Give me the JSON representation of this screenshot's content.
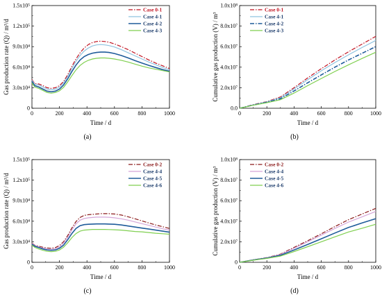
{
  "chart_data": [
    {
      "panel": "(a)",
      "type": "line",
      "xlabel": "Time / d",
      "ylabel": "Gas production rate (Q) / m³/d",
      "xlim": [
        0,
        1000
      ],
      "ylim": [
        0,
        150000
      ],
      "xticks": [
        "0",
        "200",
        "400",
        "600",
        "800",
        "1000"
      ],
      "yticks": [
        "0",
        "3.0x10⁴",
        "6.0x10⁴",
        "9.0x10⁴",
        "1.2x10⁵",
        "1.5x10⁵"
      ],
      "grid": false,
      "legend_position": "top-right",
      "series": [
        {
          "name": "Case 0-1",
          "color": "#c0111f",
          "dash": "dashdot",
          "x": [
            0,
            20,
            50,
            80,
            110,
            140,
            170,
            200,
            230,
            260,
            290,
            320,
            350,
            380,
            410,
            440,
            470,
            500,
            530,
            560,
            600,
            650,
            700,
            750,
            800,
            850,
            900,
            950,
            1000
          ],
          "y": [
            42000,
            36000,
            35500,
            33000,
            30000,
            29000,
            30000,
            33000,
            39000,
            49000,
            61000,
            72000,
            81000,
            88000,
            93000,
            96000,
            97500,
            98000,
            97500,
            96500,
            94000,
            90000,
            85500,
            80500,
            75500,
            70500,
            66000,
            62000,
            58000
          ]
        },
        {
          "name": "Case 4-1",
          "color": "#8fc3e0",
          "dash": "solid",
          "x": [
            0,
            20,
            50,
            80,
            110,
            140,
            170,
            200,
            230,
            260,
            290,
            320,
            350,
            380,
            410,
            440,
            470,
            500,
            530,
            560,
            600,
            650,
            700,
            750,
            800,
            850,
            900,
            950,
            1000
          ],
          "y": [
            41000,
            35000,
            34000,
            31000,
            28000,
            27000,
            28000,
            31000,
            37000,
            46500,
            58000,
            68500,
            77000,
            83500,
            88000,
            91000,
            92500,
            93000,
            92500,
            91500,
            89500,
            85500,
            81000,
            76500,
            72000,
            67500,
            63500,
            59500,
            56000
          ]
        },
        {
          "name": "Case 4-2",
          "color": "#1e5b9a",
          "dash": "solid",
          "x": [
            0,
            20,
            50,
            80,
            110,
            140,
            170,
            200,
            230,
            260,
            290,
            320,
            350,
            380,
            410,
            440,
            470,
            500,
            530,
            560,
            600,
            650,
            700,
            750,
            800,
            850,
            900,
            950,
            1000
          ],
          "y": [
            39000,
            33000,
            31000,
            28000,
            25000,
            24000,
            25000,
            28000,
            34000,
            43000,
            53500,
            63000,
            70500,
            75500,
            78500,
            80500,
            81500,
            82000,
            82000,
            81500,
            80000,
            77000,
            73500,
            69500,
            66000,
            62500,
            59500,
            56500,
            54000
          ]
        },
        {
          "name": "Case 4-3",
          "color": "#7fcf4f",
          "dash": "solid",
          "x": [
            0,
            20,
            50,
            80,
            110,
            140,
            170,
            200,
            230,
            260,
            290,
            320,
            350,
            380,
            410,
            440,
            470,
            500,
            530,
            560,
            600,
            650,
            700,
            750,
            800,
            850,
            900,
            950,
            1000
          ],
          "y": [
            37000,
            31000,
            29000,
            26000,
            23000,
            22000,
            23000,
            25500,
            30500,
            38500,
            47500,
            56000,
            62500,
            67000,
            70000,
            72000,
            73000,
            73500,
            73500,
            73000,
            72000,
            70000,
            67500,
            64500,
            61500,
            59000,
            57000,
            55000,
            53000
          ]
        }
      ]
    },
    {
      "panel": "(b)",
      "type": "line",
      "xlabel": "Time / d",
      "ylabel": "Cumulative gas production (V) / m³",
      "xlim": [
        0,
        1000
      ],
      "ylim": [
        0,
        100000000
      ],
      "xticks": [
        "0",
        "200",
        "400",
        "600",
        "800",
        "1000"
      ],
      "yticks": [
        "0.0",
        "2.0x10⁷",
        "4.0x10⁷",
        "6.0x10⁷",
        "8.0x10⁷",
        "1.0x10⁸"
      ],
      "grid": false,
      "legend_position": "top-left",
      "series": [
        {
          "name": "Case 0-1",
          "color": "#c0111f",
          "dash": "dashdot",
          "x": [
            0,
            100,
            200,
            300,
            400,
            500,
            600,
            700,
            800,
            900,
            1000
          ],
          "y": [
            0,
            3500000,
            6500000,
            11000000,
            20000000,
            29500000,
            38500000,
            47000000,
            55000000,
            62500000,
            70000000
          ]
        },
        {
          "name": "Case 4-1",
          "color": "#8fc3e0",
          "dash": "solid",
          "x": [
            0,
            100,
            200,
            300,
            400,
            500,
            600,
            700,
            800,
            900,
            1000
          ],
          "y": [
            0,
            3300000,
            6200000,
            10300000,
            18800000,
            27800000,
            36500000,
            44500000,
            52000000,
            59200000,
            66000000
          ]
        },
        {
          "name": "Case 4-2",
          "color": "#1e5b9a",
          "dash": "dashdot",
          "x": [
            0,
            100,
            200,
            300,
            400,
            500,
            600,
            700,
            800,
            900,
            1000
          ],
          "y": [
            0,
            3100000,
            5800000,
            9300000,
            16800000,
            24800000,
            32500000,
            40000000,
            47000000,
            53500000,
            60000000
          ]
        },
        {
          "name": "Case 4-3",
          "color": "#7fcf4f",
          "dash": "solid",
          "x": [
            0,
            100,
            200,
            300,
            400,
            500,
            600,
            700,
            800,
            900,
            1000
          ],
          "y": [
            0,
            2900000,
            5400000,
            8300000,
            14800000,
            22000000,
            29000000,
            35800000,
            42300000,
            48500000,
            54500000
          ]
        }
      ]
    },
    {
      "panel": "(c)",
      "type": "line",
      "xlabel": "Time / d",
      "ylabel": "Gas production rate (Q) / m³/d",
      "xlim": [
        0,
        1000
      ],
      "ylim": [
        0,
        150000
      ],
      "xticks": [
        "0",
        "200",
        "400",
        "600",
        "800",
        "1000"
      ],
      "yticks": [
        "0",
        "3.0x10⁴",
        "6.0x10⁴",
        "9.0x10⁴",
        "1.2x10⁵",
        "1.5x10⁵"
      ],
      "grid": false,
      "legend_position": "top-right",
      "series": [
        {
          "name": "Case 0-2",
          "color": "#8b1a1a",
          "dash": "dashdot",
          "x": [
            0,
            20,
            50,
            80,
            110,
            140,
            170,
            200,
            230,
            260,
            290,
            320,
            350,
            380,
            410,
            440,
            470,
            500,
            530,
            560,
            600,
            650,
            700,
            750,
            800,
            850,
            900,
            950,
            1000
          ],
          "y": [
            28000,
            25000,
            23500,
            22000,
            21000,
            20500,
            21500,
            24500,
            30000,
            39000,
            50000,
            59500,
            65500,
            68500,
            69500,
            70000,
            70500,
            71000,
            71000,
            71000,
            70500,
            69000,
            66500,
            63500,
            60500,
            57500,
            54500,
            52000,
            49500
          ]
        },
        {
          "name": "Case 4-4",
          "color": "#d4a5d8",
          "dash": "solid",
          "x": [
            0,
            20,
            50,
            80,
            110,
            140,
            170,
            200,
            230,
            260,
            290,
            320,
            350,
            380,
            410,
            440,
            470,
            500,
            530,
            560,
            600,
            650,
            700,
            750,
            800,
            850,
            900,
            950,
            1000
          ],
          "y": [
            27500,
            24500,
            22500,
            21000,
            19500,
            19000,
            20000,
            22500,
            28000,
            36500,
            47000,
            56000,
            61500,
            64000,
            65000,
            65500,
            66000,
            66000,
            66000,
            65800,
            65000,
            63500,
            61500,
            59000,
            56500,
            54000,
            51500,
            49000,
            47000
          ]
        },
        {
          "name": "Case 4-5",
          "color": "#1e5b9a",
          "dash": "solid",
          "x": [
            0,
            20,
            50,
            80,
            110,
            140,
            170,
            200,
            230,
            260,
            290,
            320,
            350,
            380,
            410,
            440,
            470,
            500,
            530,
            560,
            600,
            650,
            700,
            750,
            800,
            850,
            900,
            950,
            1000
          ],
          "y": [
            26500,
            23500,
            21500,
            19500,
            18000,
            17500,
            18000,
            20500,
            25000,
            33000,
            42000,
            49500,
            53500,
            55000,
            55500,
            55800,
            56000,
            56000,
            56000,
            55800,
            55500,
            54500,
            53000,
            51500,
            50000,
            48500,
            47000,
            45500,
            44000
          ]
        },
        {
          "name": "Case 4-6",
          "color": "#7fcf4f",
          "dash": "solid",
          "x": [
            0,
            20,
            50,
            80,
            110,
            140,
            170,
            200,
            230,
            260,
            290,
            320,
            350,
            380,
            410,
            440,
            470,
            500,
            530,
            560,
            600,
            650,
            700,
            750,
            800,
            850,
            900,
            950,
            1000
          ],
          "y": [
            25000,
            22000,
            19500,
            17500,
            16000,
            15500,
            16000,
            18000,
            22000,
            28500,
            36000,
            42000,
            45500,
            47000,
            47500,
            48000,
            48000,
            48000,
            48000,
            47800,
            47500,
            47000,
            46000,
            45000,
            44500,
            43500,
            42500,
            41800,
            41000
          ]
        }
      ]
    },
    {
      "panel": "(d)",
      "type": "line",
      "xlabel": "Time / d",
      "ylabel": "Cumulative gas production (V) / m³",
      "xlim": [
        0,
        1000
      ],
      "ylim": [
        0,
        100000000
      ],
      "xticks": [
        "0",
        "200",
        "400",
        "600",
        "800",
        "1000"
      ],
      "yticks": [
        "0",
        "2.0x10⁷",
        "4.0x10⁷",
        "6.0x10⁷",
        "8.0x10⁷",
        "1.0x10⁸"
      ],
      "grid": false,
      "legend_position": "top-left",
      "series": [
        {
          "name": "Case 0-2",
          "color": "#8b1a1a",
          "dash": "dashdot",
          "x": [
            0,
            100,
            200,
            300,
            400,
            500,
            600,
            700,
            800,
            900,
            1000
          ],
          "y": [
            0,
            2400000,
            4600000,
            8000000,
            14500000,
            21000000,
            27800000,
            34800000,
            41500000,
            47000000,
            52500000
          ]
        },
        {
          "name": "Case 4-4",
          "color": "#d4a5d8",
          "dash": "solid",
          "x": [
            0,
            100,
            200,
            300,
            400,
            500,
            600,
            700,
            800,
            900,
            1000
          ],
          "y": [
            0,
            2300000,
            4400000,
            7600000,
            13700000,
            20000000,
            26500000,
            33000000,
            39200000,
            44300000,
            49500000
          ]
        },
        {
          "name": "Case 4-5",
          "color": "#1e5b9a",
          "dash": "solid",
          "x": [
            0,
            100,
            200,
            300,
            400,
            500,
            600,
            700,
            800,
            900,
            1000
          ],
          "y": [
            0,
            2200000,
            4100000,
            6800000,
            12000000,
            17400000,
            22900000,
            28500000,
            33900000,
            38300000,
            42500000
          ]
        },
        {
          "name": "Case 4-6",
          "color": "#7fcf4f",
          "dash": "solid",
          "x": [
            0,
            100,
            200,
            300,
            400,
            500,
            600,
            700,
            800,
            900,
            1000
          ],
          "y": [
            0,
            2000000,
            3800000,
            6000000,
            10500000,
            15200000,
            20000000,
            24800000,
            29500000,
            33200000,
            37000000
          ]
        }
      ]
    }
  ]
}
